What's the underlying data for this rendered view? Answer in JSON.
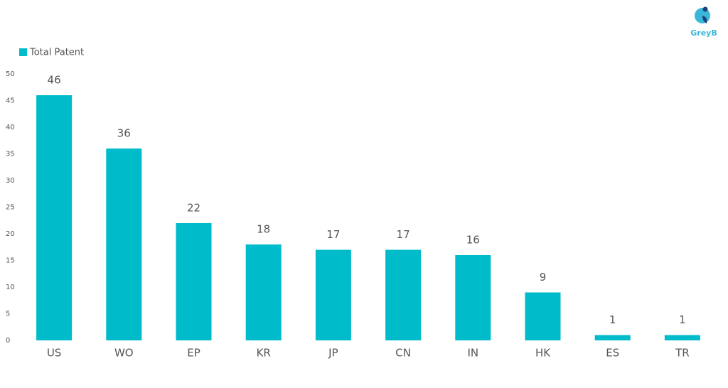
{
  "brand": "GreyB",
  "chart_data": {
    "type": "bar",
    "categories": [
      "US",
      "WO",
      "EP",
      "KR",
      "JP",
      "CN",
      "IN",
      "HK",
      "ES",
      "TR"
    ],
    "series": [
      {
        "name": "Total Patent",
        "color": "#00bccb",
        "values": [
          46,
          36,
          22,
          18,
          17,
          17,
          16,
          9,
          1,
          1
        ]
      }
    ],
    "ylim": [
      0,
      50
    ],
    "yticks": [
      0,
      5,
      10,
      15,
      20,
      25,
      30,
      35,
      40,
      45,
      50
    ],
    "grid": false,
    "legend": "top-left",
    "data_labels": true
  }
}
